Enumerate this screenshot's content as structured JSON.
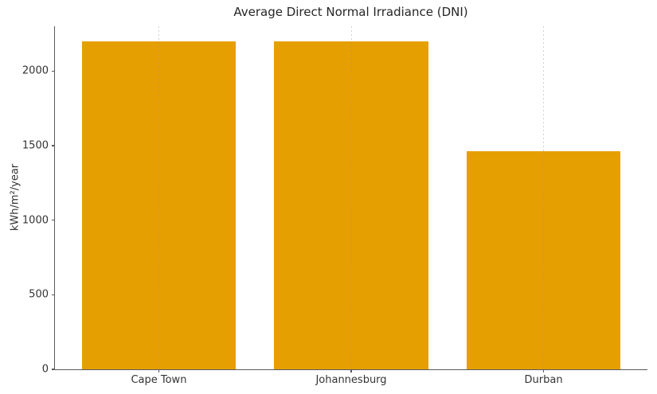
{
  "chart_data": {
    "type": "bar",
    "title": "Average Direct Normal Irradiance (DNI)",
    "xlabel": "",
    "ylabel": "kWh/m²/year",
    "categories": [
      "Cape Town",
      "Johannesburg",
      "Durban"
    ],
    "values": [
      2200,
      2200,
      1460
    ],
    "yticks": [
      0,
      500,
      1000,
      1500,
      2000
    ],
    "ylim": [
      0,
      2300
    ],
    "legend": "none",
    "grid": "vertical-dashed",
    "colors": {
      "bar": "#E69F00",
      "spine": "#5a5a5a",
      "text": "#333333",
      "title_text": "#262626",
      "gridline": "#c8c8c8",
      "background": "#ffffff"
    }
  }
}
